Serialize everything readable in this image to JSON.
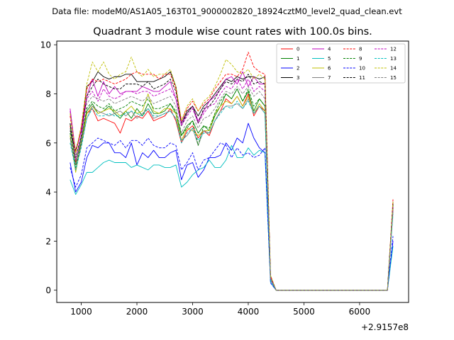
{
  "figure": {
    "suptitle": "Data file: modeM0/AS1A05_163T01_9000002820_18924cztM0_level2_quad_clean.evt"
  },
  "chart_data": {
    "type": "line",
    "title": "Quadrant 3 module wise count rates with 100.0s bins.",
    "xlabel": "",
    "ylabel": "",
    "x_offset_label": "+2.9157e8",
    "xlim": [
      560,
      6880
    ],
    "ylim": [
      -0.5,
      10.15
    ],
    "x_ticks": [
      1000,
      2000,
      3000,
      4000,
      5000,
      6000
    ],
    "x_tick_labels": [
      "1000",
      "2000",
      "3000",
      "4000",
      "5000",
      "6000"
    ],
    "y_ticks": [
      0,
      2,
      4,
      6,
      8,
      10
    ],
    "y_tick_labels": [
      "0",
      "2",
      "4",
      "6",
      "8",
      "10"
    ],
    "grid": false,
    "legend": {
      "position": "top-right",
      "columns": 4
    },
    "x": [
      800,
      900,
      1000,
      1100,
      1200,
      1300,
      1400,
      1500,
      1600,
      1700,
      1800,
      1900,
      2000,
      2100,
      2200,
      2300,
      2400,
      2500,
      2600,
      2700,
      2800,
      2900,
      3000,
      3100,
      3200,
      3300,
      3400,
      3500,
      3600,
      3700,
      3800,
      3900,
      4000,
      4100,
      4200,
      4300,
      4400,
      4500,
      4600,
      4700,
      4800,
      4900,
      5000,
      5100,
      5200,
      5300,
      5400,
      5500,
      5600,
      5700,
      5800,
      5900,
      6000,
      6100,
      6200,
      6300,
      6400,
      6500,
      6600
    ],
    "series": [
      {
        "name": "0",
        "color": "#ff0000",
        "dash": "solid",
        "values": [
          6.7,
          5.2,
          6.0,
          7.2,
          7.4,
          6.9,
          7.0,
          6.9,
          6.8,
          6.4,
          7.0,
          6.9,
          7.1,
          7.0,
          7.3,
          6.9,
          7.0,
          7.1,
          7.4,
          6.9,
          6.0,
          6.5,
          6.7,
          6.2,
          6.5,
          6.3,
          6.9,
          7.3,
          7.8,
          7.6,
          7.9,
          7.5,
          8.0,
          7.1,
          7.5,
          7.3,
          0.5,
          0,
          0,
          0,
          0,
          0,
          0,
          0,
          0,
          0,
          0,
          0,
          0,
          0,
          0,
          0,
          0,
          0,
          0,
          0,
          0,
          0,
          3.4
        ]
      },
      {
        "name": "1",
        "color": "#008000",
        "dash": "solid",
        "values": [
          6.8,
          5.1,
          6.2,
          7.3,
          7.6,
          7.2,
          7.3,
          7.5,
          7.2,
          7.0,
          7.3,
          7.0,
          7.4,
          7.1,
          7.6,
          7.2,
          7.2,
          7.3,
          7.6,
          7.2,
          6.3,
          6.7,
          6.9,
          6.4,
          6.7,
          6.5,
          7.1,
          7.5,
          8.0,
          7.8,
          8.2,
          7.7,
          8.1,
          7.3,
          7.8,
          7.5,
          0.5,
          0,
          0,
          0,
          0,
          0,
          0,
          0,
          0,
          0,
          0,
          0,
          0,
          0,
          0,
          0,
          0,
          0,
          0,
          0,
          0,
          0,
          3.5
        ]
      },
      {
        "name": "2",
        "color": "#0000ff",
        "dash": "solid",
        "values": [
          5.2,
          4.0,
          4.4,
          5.4,
          5.9,
          5.8,
          6.0,
          6.0,
          5.6,
          5.6,
          5.4,
          6.0,
          5.1,
          5.6,
          5.4,
          5.7,
          5.4,
          5.4,
          5.6,
          5.7,
          4.5,
          5.1,
          5.2,
          4.6,
          4.9,
          5.4,
          5.4,
          5.5,
          6.0,
          5.7,
          6.2,
          6.0,
          6.8,
          6.2,
          5.8,
          5.6,
          0.4,
          0,
          0,
          0,
          0,
          0,
          0,
          0,
          0,
          0,
          0,
          0,
          0,
          0,
          0,
          0,
          0,
          0,
          0,
          0,
          0,
          0,
          2.0
        ]
      },
      {
        "name": "3",
        "color": "#000000",
        "dash": "solid",
        "values": [
          6.5,
          5.7,
          6.5,
          8.3,
          8.5,
          8.9,
          8.7,
          8.6,
          8.7,
          8.7,
          8.8,
          8.8,
          8.5,
          8.5,
          8.5,
          8.5,
          8.6,
          8.7,
          8.9,
          8.3,
          6.8,
          7.3,
          7.5,
          7.1,
          7.5,
          7.7,
          8.0,
          8.3,
          8.6,
          8.5,
          8.7,
          8.6,
          8.7,
          8.7,
          8.6,
          8.7,
          0.5,
          0,
          0,
          0,
          0,
          0,
          0,
          0,
          0,
          0,
          0,
          0,
          0,
          0,
          0,
          0,
          0,
          0,
          0,
          0,
          0,
          0,
          3.6
        ]
      },
      {
        "name": "4",
        "color": "#bf00bf",
        "dash": "solid",
        "values": [
          7.4,
          5.6,
          6.5,
          7.9,
          8.6,
          7.9,
          8.5,
          8.0,
          8.3,
          8.0,
          8.1,
          8.1,
          8.1,
          8.3,
          8.2,
          8.1,
          8.1,
          8.3,
          8.5,
          7.8,
          6.8,
          7.2,
          7.5,
          6.9,
          7.3,
          7.7,
          7.9,
          8.2,
          8.6,
          8.7,
          8.4,
          8.9,
          8.3,
          8.7,
          8.4,
          8.4,
          0.5,
          0,
          0,
          0,
          0,
          0,
          0,
          0,
          0,
          0,
          0,
          0,
          0,
          0,
          0,
          0,
          0,
          0,
          0,
          0,
          0,
          0,
          3.3
        ]
      },
      {
        "name": "5",
        "color": "#00bfbf",
        "dash": "solid",
        "values": [
          4.5,
          3.9,
          4.3,
          4.8,
          4.8,
          5.0,
          5.2,
          5.3,
          5.2,
          5.2,
          5.2,
          5.0,
          5.1,
          5.0,
          4.9,
          5.1,
          5.1,
          5.0,
          5.0,
          5.1,
          4.2,
          4.4,
          4.7,
          4.9,
          5.0,
          5.3,
          5.0,
          5.0,
          5.3,
          5.9,
          5.4,
          5.4,
          5.8,
          5.5,
          5.7,
          5.6,
          0.3,
          0,
          0,
          0,
          0,
          0,
          0,
          0,
          0,
          0,
          0,
          0,
          0,
          0,
          0,
          0,
          0,
          0,
          0,
          0,
          0,
          0,
          1.8
        ]
      },
      {
        "name": "6",
        "color": "#bfbf00",
        "dash": "solid",
        "values": [
          6.3,
          4.8,
          6.0,
          7.2,
          7.5,
          7.2,
          7.3,
          7.4,
          7.3,
          7.1,
          7.3,
          7.5,
          7.2,
          7.3,
          8.0,
          7.3,
          7.2,
          7.4,
          7.4,
          7.2,
          6.1,
          6.6,
          6.5,
          6.3,
          6.5,
          6.5,
          7.2,
          7.5,
          7.7,
          7.6,
          7.9,
          7.5,
          7.9,
          7.2,
          7.6,
          7.3,
          0.5,
          0,
          0,
          0,
          0,
          0,
          0,
          0,
          0,
          0,
          0,
          0,
          0,
          0,
          0,
          0,
          0,
          0,
          0,
          0,
          0,
          0,
          3.4
        ]
      },
      {
        "name": "7",
        "color": "#808080",
        "dash": "solid",
        "values": [
          6.2,
          4.9,
          5.9,
          7.0,
          7.5,
          7.3,
          7.2,
          7.1,
          7.2,
          7.3,
          7.1,
          7.3,
          7.0,
          7.2,
          7.4,
          7.0,
          7.1,
          7.2,
          7.3,
          7.0,
          6.1,
          6.3,
          6.6,
          5.9,
          6.5,
          6.4,
          6.9,
          7.3,
          7.5,
          7.5,
          7.6,
          7.4,
          7.8,
          7.2,
          7.5,
          7.2,
          0.4,
          0,
          0,
          0,
          0,
          0,
          0,
          0,
          0,
          0,
          0,
          0,
          0,
          0,
          0,
          0,
          0,
          0,
          0,
          0,
          0,
          0,
          3.2
        ]
      },
      {
        "name": "8",
        "color": "#ff0000",
        "dash": "dashed",
        "values": [
          7.1,
          5.6,
          6.6,
          8.2,
          8.6,
          8.5,
          8.6,
          8.5,
          8.4,
          8.5,
          8.6,
          8.8,
          8.9,
          8.8,
          8.8,
          8.8,
          8.6,
          8.8,
          8.8,
          8.2,
          6.9,
          7.4,
          7.7,
          7.3,
          7.6,
          7.8,
          8.2,
          8.5,
          8.8,
          8.8,
          8.7,
          9.0,
          9.7,
          9.1,
          8.9,
          8.8,
          0.6,
          0,
          0,
          0,
          0,
          0,
          0,
          0,
          0,
          0,
          0,
          0,
          0,
          0,
          0,
          0,
          0,
          0,
          0,
          0,
          0,
          0,
          3.7
        ]
      },
      {
        "name": "9",
        "color": "#008000",
        "dash": "dashed",
        "values": [
          6.4,
          5.0,
          6.0,
          7.4,
          7.7,
          7.5,
          7.4,
          7.6,
          7.3,
          7.4,
          7.5,
          7.7,
          7.6,
          7.5,
          7.8,
          7.4,
          7.4,
          7.5,
          7.6,
          7.3,
          6.3,
          6.6,
          6.9,
          5.9,
          6.7,
          6.6,
          7.2,
          7.7,
          8.0,
          7.8,
          8.2,
          7.7,
          8.2,
          7.5,
          7.8,
          7.5,
          0.5,
          0,
          0,
          0,
          0,
          0,
          0,
          0,
          0,
          0,
          0,
          0,
          0,
          0,
          0,
          0,
          0,
          0,
          0,
          0,
          0,
          0,
          3.4
        ]
      },
      {
        "name": "10",
        "color": "#0000ff",
        "dash": "dashed",
        "values": [
          5.0,
          4.2,
          4.7,
          5.8,
          6.0,
          6.2,
          6.1,
          6.0,
          5.9,
          6.1,
          5.8,
          6.1,
          6.1,
          5.9,
          6.2,
          5.9,
          5.8,
          5.8,
          6.0,
          5.9,
          4.9,
          5.2,
          5.6,
          4.9,
          5.3,
          5.4,
          5.7,
          6.0,
          5.9,
          5.4,
          5.8,
          5.5,
          5.6,
          5.4,
          5.5,
          5.8,
          0.3,
          0,
          0,
          0,
          0,
          0,
          0,
          0,
          0,
          0,
          0,
          0,
          0,
          0,
          0,
          0,
          0,
          0,
          0,
          0,
          0,
          0,
          2.2
        ]
      },
      {
        "name": "11",
        "color": "#000000",
        "dash": "dashed",
        "values": [
          6.8,
          5.4,
          6.3,
          7.9,
          8.3,
          8.6,
          8.4,
          8.3,
          8.2,
          8.2,
          8.4,
          8.4,
          8.4,
          8.3,
          8.5,
          8.2,
          8.3,
          8.4,
          8.6,
          8.1,
          6.7,
          7.2,
          7.5,
          6.8,
          7.4,
          7.5,
          7.8,
          8.2,
          8.5,
          8.4,
          8.6,
          8.5,
          8.8,
          8.4,
          8.5,
          8.4,
          0.5,
          0,
          0,
          0,
          0,
          0,
          0,
          0,
          0,
          0,
          0,
          0,
          0,
          0,
          0,
          0,
          0,
          0,
          0,
          0,
          0,
          0,
          3.5
        ]
      },
      {
        "name": "12",
        "color": "#bf00bf",
        "dash": "dashed",
        "values": [
          7.3,
          5.3,
          6.3,
          7.8,
          8.1,
          7.7,
          8.2,
          7.9,
          7.8,
          7.9,
          8.1,
          8.1,
          8.0,
          8.1,
          8.1,
          7.9,
          8.0,
          8.1,
          8.2,
          7.8,
          6.7,
          7.1,
          7.4,
          6.8,
          7.2,
          7.5,
          7.6,
          8.0,
          8.3,
          8.2,
          8.6,
          8.2,
          8.6,
          8.1,
          8.3,
          8.1,
          0.5,
          0,
          0,
          0,
          0,
          0,
          0,
          0,
          0,
          0,
          0,
          0,
          0,
          0,
          0,
          0,
          0,
          0,
          0,
          0,
          0,
          0,
          3.4
        ]
      },
      {
        "name": "13",
        "color": "#00bfbf",
        "dash": "dashed",
        "values": [
          6.0,
          4.9,
          5.8,
          7.0,
          7.4,
          7.1,
          7.1,
          7.2,
          7.1,
          7.1,
          7.2,
          7.3,
          7.2,
          7.1,
          7.4,
          7.1,
          7.1,
          7.2,
          7.3,
          7.0,
          6.0,
          6.4,
          6.6,
          6.1,
          6.4,
          6.4,
          6.9,
          7.2,
          7.5,
          7.4,
          7.7,
          7.4,
          7.7,
          7.2,
          7.5,
          7.2,
          0.4,
          0,
          0,
          0,
          0,
          0,
          0,
          0,
          0,
          0,
          0,
          0,
          0,
          0,
          0,
          0,
          0,
          0,
          0,
          0,
          0,
          0,
          3.1
        ]
      },
      {
        "name": "14",
        "color": "#bfbf00",
        "dash": "dashed",
        "values": [
          7.2,
          5.6,
          6.7,
          8.4,
          9.3,
          8.9,
          9.3,
          8.8,
          8.6,
          8.8,
          8.9,
          9.5,
          8.9,
          8.7,
          9.0,
          8.7,
          8.8,
          8.8,
          9.0,
          8.3,
          6.9,
          7.5,
          7.8,
          7.3,
          7.7,
          7.9,
          8.3,
          8.8,
          9.4,
          9.2,
          8.9,
          8.8,
          9.0,
          8.6,
          8.8,
          8.6,
          0.6,
          0,
          0,
          0,
          0,
          0,
          0,
          0,
          0,
          0,
          0,
          0,
          0,
          0,
          0,
          0,
          0,
          0,
          0,
          0,
          0,
          0,
          3.6
        ]
      },
      {
        "name": "15",
        "color": "#808080",
        "dash": "dashed",
        "values": [
          6.6,
          5.1,
          6.1,
          7.6,
          7.9,
          7.8,
          7.7,
          7.8,
          7.6,
          7.7,
          7.8,
          7.9,
          7.8,
          7.7,
          7.9,
          7.6,
          7.7,
          7.8,
          7.9,
          7.5,
          6.4,
          6.9,
          7.1,
          6.6,
          7.0,
          7.1,
          7.4,
          7.8,
          8.1,
          8.0,
          8.3,
          8.0,
          8.3,
          7.9,
          8.1,
          7.8,
          0.5,
          0,
          0,
          0,
          0,
          0,
          0,
          0,
          0,
          0,
          0,
          0,
          0,
          0,
          0,
          0,
          0,
          0,
          0,
          0,
          0,
          0,
          3.3
        ]
      }
    ]
  }
}
